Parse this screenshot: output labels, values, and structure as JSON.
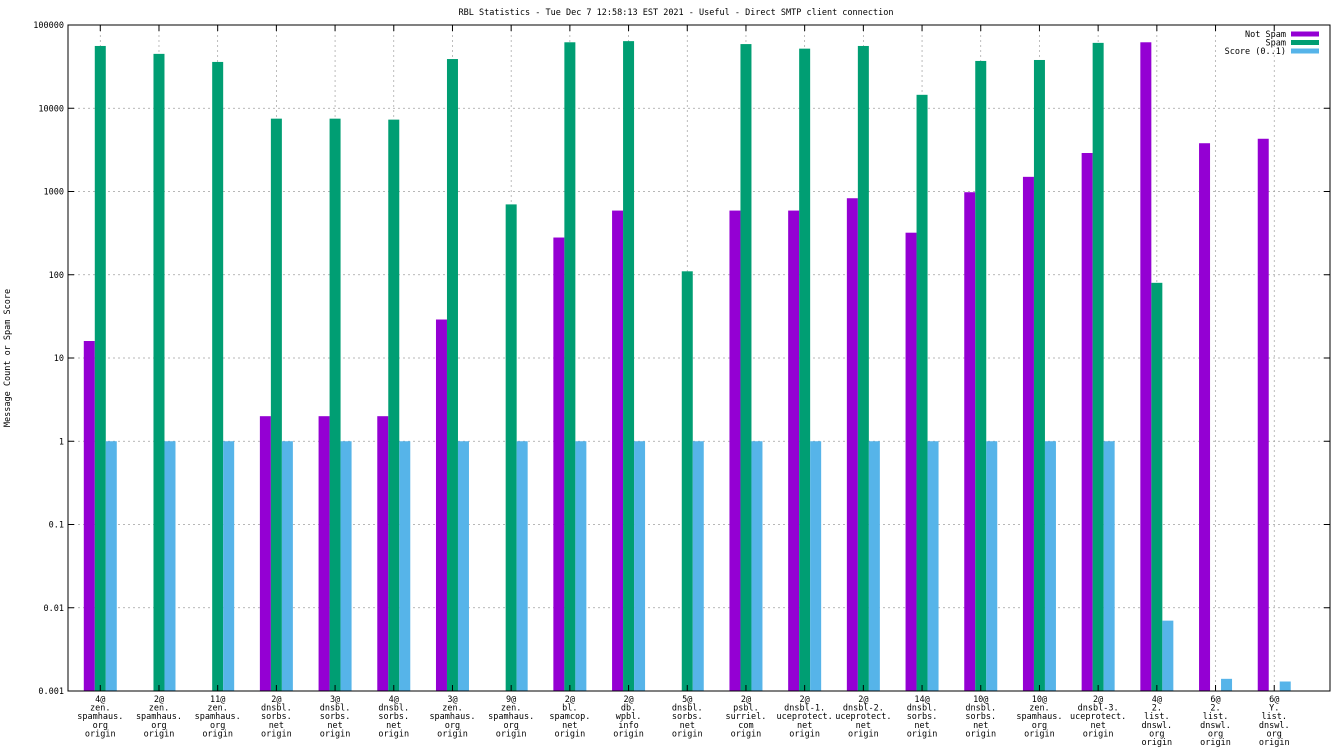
{
  "chart_data": {
    "type": "bar",
    "title": "RBL Statistics - Tue Dec  7 12:58:13 EST 2021 - Useful - Direct SMTP client connection",
    "xlabel": "",
    "ylabel": "Message Count or Spam Score",
    "yscale": "log",
    "ylim": [
      0.001,
      100000
    ],
    "yticks": [
      {
        "value": 100000,
        "label": "100000"
      },
      {
        "value": 10000,
        "label": "10000"
      },
      {
        "value": 1000,
        "label": "1000"
      },
      {
        "value": 100,
        "label": "100"
      },
      {
        "value": 10,
        "label": "10"
      },
      {
        "value": 1,
        "label": "1"
      },
      {
        "value": 0.1,
        "label": "0.1"
      },
      {
        "value": 0.01,
        "label": "0.01"
      },
      {
        "value": 0.001,
        "label": "0.001"
      }
    ],
    "grid": true,
    "legend_position": "top-right",
    "categories": [
      [
        "4@",
        "zen.",
        "spamhaus.",
        "org",
        "origin"
      ],
      [
        "2@",
        "zen.",
        "spamhaus.",
        "org",
        "origin"
      ],
      [
        "11@",
        "zen.",
        "spamhaus.",
        "org",
        "origin"
      ],
      [
        "2@",
        "dnsbl.",
        "sorbs.",
        "net",
        "origin"
      ],
      [
        "3@",
        "dnsbl.",
        "sorbs.",
        "net",
        "origin"
      ],
      [
        "4@",
        "dnsbl.",
        "sorbs.",
        "net",
        "origin"
      ],
      [
        "3@",
        "zen.",
        "spamhaus.",
        "org",
        "origin"
      ],
      [
        "9@",
        "zen.",
        "spamhaus.",
        "org",
        "origin"
      ],
      [
        "2@",
        "bl.",
        "spamcop.",
        "net",
        "origin"
      ],
      [
        "2@",
        "db.",
        "wpbl.",
        "info",
        "origin"
      ],
      [
        "5@",
        "dnsbl.",
        "sorbs.",
        "net",
        "origin"
      ],
      [
        "2@",
        "psbl.",
        "surriel.",
        "com",
        "origin"
      ],
      [
        "2@",
        "dnsbl-1.",
        "uceprotect.",
        "net",
        "origin"
      ],
      [
        "2@",
        "dnsbl-2.",
        "uceprotect.",
        "net",
        "origin"
      ],
      [
        "14@",
        "dnsbl.",
        "sorbs.",
        "net",
        "origin"
      ],
      [
        "10@",
        "dnsbl.",
        "sorbs.",
        "net",
        "origin"
      ],
      [
        "10@",
        "zen.",
        "spamhaus.",
        "org",
        "origin"
      ],
      [
        "2@",
        "dnsbl-3.",
        "uceprotect.",
        "net",
        "origin"
      ],
      [
        "4@",
        "2.",
        "list.",
        "dnswl.",
        "org",
        "origin"
      ],
      [
        "6@",
        "2.",
        "list.",
        "dnswl.",
        "org",
        "origin"
      ],
      [
        "6@",
        "Y.",
        "list.",
        "dnswl.",
        "org",
        "origin"
      ]
    ],
    "series": [
      {
        "name": "Not Spam",
        "color": "#9400d3",
        "values": [
          16,
          null,
          null,
          2,
          2,
          2,
          29,
          null,
          280,
          590,
          null,
          590,
          590,
          830,
          320,
          980,
          1500,
          2900,
          62000,
          3800,
          4300
        ]
      },
      {
        "name": "Spam",
        "color": "#009e73",
        "values": [
          56000,
          45000,
          36000,
          7500,
          7500,
          7300,
          39000,
          700,
          62000,
          64000,
          110,
          59000,
          52000,
          56000,
          14500,
          37000,
          38000,
          61000,
          80,
          null,
          null
        ]
      },
      {
        "name": "Score (0..1)",
        "color": "#56b4e9",
        "values": [
          1,
          1,
          1,
          1,
          1,
          1,
          1,
          1,
          1,
          1,
          1,
          1,
          1,
          1,
          1,
          1,
          1,
          1,
          0.007,
          0.0014,
          0.0013
        ]
      }
    ]
  }
}
